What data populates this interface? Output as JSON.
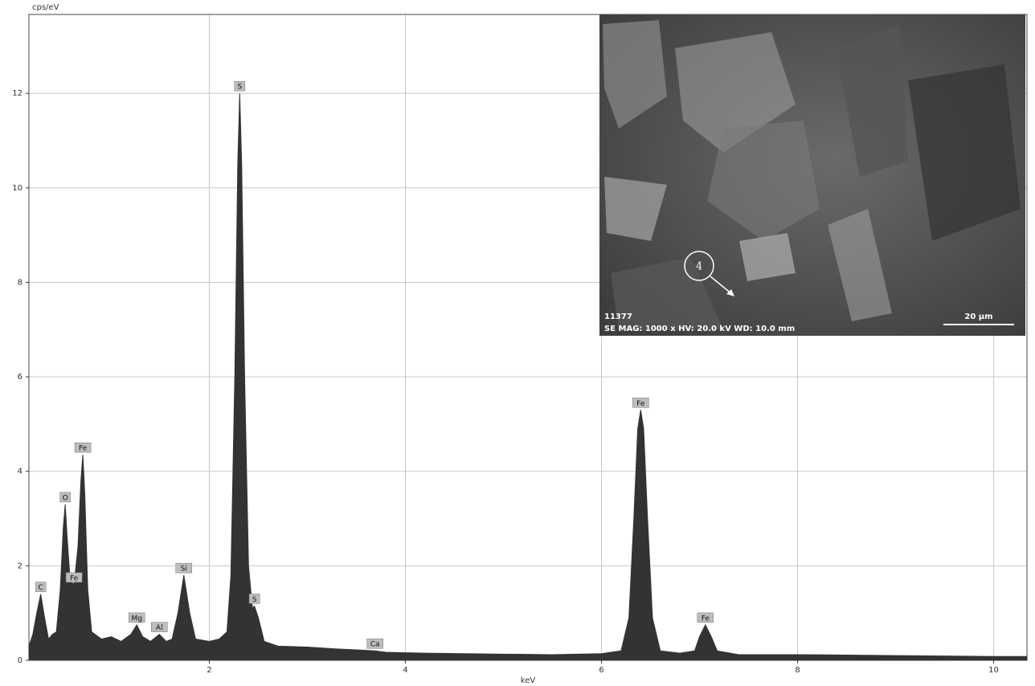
{
  "chart_data": {
    "type": "area",
    "y_label": "cps/eV",
    "x_label": "keV",
    "xlim": [
      0.16,
      10.34
    ],
    "ylim": [
      0,
      13.67
    ],
    "xticks": [
      2,
      4,
      6,
      8,
      10
    ],
    "yticks": [
      0,
      2,
      4,
      6,
      8,
      10,
      12
    ],
    "grid": true,
    "x": [
      0.16,
      0.2,
      0.24,
      0.28,
      0.32,
      0.36,
      0.4,
      0.44,
      0.48,
      0.51,
      0.53,
      0.55,
      0.58,
      0.62,
      0.66,
      0.69,
      0.71,
      0.73,
      0.76,
      0.8,
      0.9,
      1.0,
      1.1,
      1.2,
      1.26,
      1.32,
      1.4,
      1.49,
      1.56,
      1.62,
      1.68,
      1.74,
      1.8,
      1.86,
      2.0,
      2.1,
      2.18,
      2.22,
      2.26,
      2.29,
      2.31,
      2.33,
      2.36,
      2.4,
      2.44,
      2.46,
      2.5,
      2.56,
      2.7,
      3.0,
      3.3,
      3.5,
      3.69,
      3.8,
      4.2,
      4.6,
      5.0,
      5.5,
      6.0,
      6.2,
      6.28,
      6.33,
      6.37,
      6.4,
      6.43,
      6.47,
      6.52,
      6.6,
      6.8,
      6.95,
      7.0,
      7.06,
      7.12,
      7.18,
      7.4,
      8.0,
      9.0,
      10.0,
      10.34
    ],
    "series": [
      {
        "color": "#333333",
        "values": [
          0.3,
          0.55,
          1.0,
          1.4,
          0.9,
          0.45,
          0.55,
          0.6,
          1.5,
          2.8,
          3.3,
          2.6,
          1.7,
          1.6,
          2.4,
          3.8,
          4.35,
          3.5,
          1.5,
          0.6,
          0.45,
          0.5,
          0.4,
          0.55,
          0.75,
          0.5,
          0.4,
          0.55,
          0.4,
          0.45,
          1.0,
          1.8,
          1.0,
          0.45,
          0.4,
          0.45,
          0.6,
          1.8,
          6.0,
          10.5,
          12.0,
          10.5,
          6.0,
          2.0,
          1.1,
          1.15,
          0.9,
          0.4,
          0.3,
          0.28,
          0.24,
          0.22,
          0.2,
          0.17,
          0.15,
          0.14,
          0.13,
          0.12,
          0.14,
          0.2,
          0.9,
          3.0,
          4.9,
          5.3,
          4.9,
          3.0,
          0.9,
          0.2,
          0.15,
          0.2,
          0.5,
          0.75,
          0.5,
          0.2,
          0.12,
          0.12,
          0.1,
          0.08,
          0.08
        ]
      }
    ],
    "annotations": [
      {
        "text": "C",
        "x": 0.28,
        "y": 1.4
      },
      {
        "text": "O",
        "x": 0.53,
        "y": 3.3
      },
      {
        "text": "Fe",
        "x": 0.71,
        "y": 4.35
      },
      {
        "text": "Fe",
        "x": 0.62,
        "y": 1.6
      },
      {
        "text": "Mg",
        "x": 1.26,
        "y": 0.75
      },
      {
        "text": "Al",
        "x": 1.49,
        "y": 0.55
      },
      {
        "text": "Si",
        "x": 1.74,
        "y": 1.8
      },
      {
        "text": "S",
        "x": 2.31,
        "y": 12.0
      },
      {
        "text": "S",
        "x": 2.46,
        "y": 1.15
      },
      {
        "text": "Ca",
        "x": 3.69,
        "y": 0.2
      },
      {
        "text": "Fe",
        "x": 6.4,
        "y": 5.3
      },
      {
        "text": "Fe",
        "x": 7.06,
        "y": 0.75
      }
    ],
    "inset": {
      "id": "11377",
      "info": "SE  MAG: 1000 x  HV: 20.0 kV  WD: 10.0 mm",
      "scale": "20 µm",
      "marker": "4"
    }
  }
}
